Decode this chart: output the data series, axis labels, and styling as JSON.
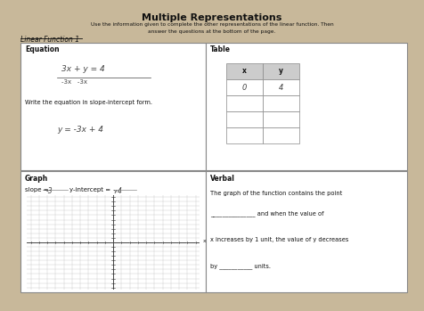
{
  "title": "Multiple Representations",
  "subtitle": "Use the information given to complete the other representations of the linear function. Then",
  "subtitle2": "answer the questions at the bottom of the page.",
  "linear_function_label": "Linear Function 1",
  "equation_label": "Equation",
  "table_label": "Table",
  "graph_label": "Graph",
  "verbal_label": "Verbal",
  "equation_text": "3x + y = 4",
  "equation_sub": "-3x   -3x",
  "slope_intercept_label": "Write the equation in slope-intercept form.",
  "slope_intercept_text": "y = -3x + 4",
  "slope_value": "-3",
  "yintercept_value": "4",
  "table_headers": [
    "x",
    "y"
  ],
  "table_row1": [
    "0",
    "4"
  ],
  "verbal_line1": "The graph of the function contains the point",
  "verbal_line2": "_______________ and when the value of",
  "verbal_line3": "x increases by 1 unit, the value of y decreases",
  "verbal_line4": "by ___________ units.",
  "bg_color": "#c8b89a",
  "paper_color": "#f0ede6",
  "box_color": "#ffffff",
  "grid_color": "#bbbbbb",
  "border_color": "#888888",
  "text_color": "#111111",
  "handwriting_color": "#444444",
  "table_header_bg": "#cccccc",
  "axis_range": 10
}
